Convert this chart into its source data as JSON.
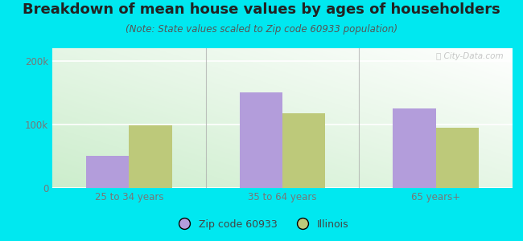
{
  "title": "Breakdown of mean house values by ages of householders",
  "subtitle": "(Note: State values scaled to Zip code 60933 population)",
  "categories": [
    "25 to 34 years",
    "35 to 64 years",
    "65 years+"
  ],
  "zip_values": [
    50000,
    150000,
    125000
  ],
  "il_values": [
    98000,
    118000,
    95000
  ],
  "zip_color": "#b39ddb",
  "il_color": "#bdc97a",
  "background_color": "#00e8f0",
  "ylim": [
    0,
    220000
  ],
  "yticks": [
    0,
    100000,
    200000
  ],
  "ytick_labels": [
    "0",
    "100k",
    "200k"
  ],
  "watermark": "ⓘ City-Data.com",
  "legend_zip_label": "Zip code 60933",
  "legend_il_label": "Illinois",
  "bar_width": 0.28,
  "title_fontsize": 13,
  "subtitle_fontsize": 8.5,
  "tick_fontsize": 8.5,
  "legend_fontsize": 9
}
